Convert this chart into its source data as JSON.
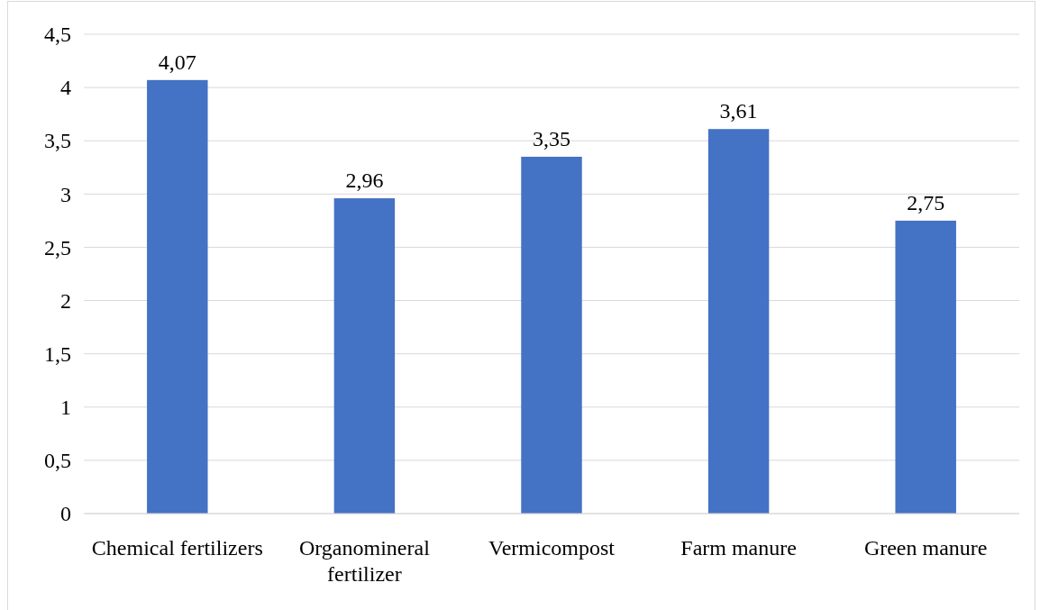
{
  "chart_data": {
    "type": "bar",
    "categories": [
      "Chemical fertilizers",
      "Organomineral fertilizer",
      "Vermicompost",
      "Farm manure",
      "Green manure"
    ],
    "values": [
      4.07,
      2.96,
      3.35,
      3.61,
      2.75
    ],
    "value_labels": [
      "4,07",
      "2,96",
      "3,35",
      "3,61",
      "2,75"
    ],
    "color": "#4472c4",
    "ylim": [
      0,
      4.5
    ],
    "yticks": [
      0,
      {
        "value": 0.5,
        "label": "0,5"
      },
      1,
      {
        "value": 1.5,
        "label": "1,5"
      },
      2,
      {
        "value": 2.5,
        "label": "2,5"
      },
      3,
      {
        "value": 3.5,
        "label": "3,5"
      },
      4,
      {
        "value": 4.5,
        "label": "4,5"
      }
    ],
    "grid": "y"
  }
}
